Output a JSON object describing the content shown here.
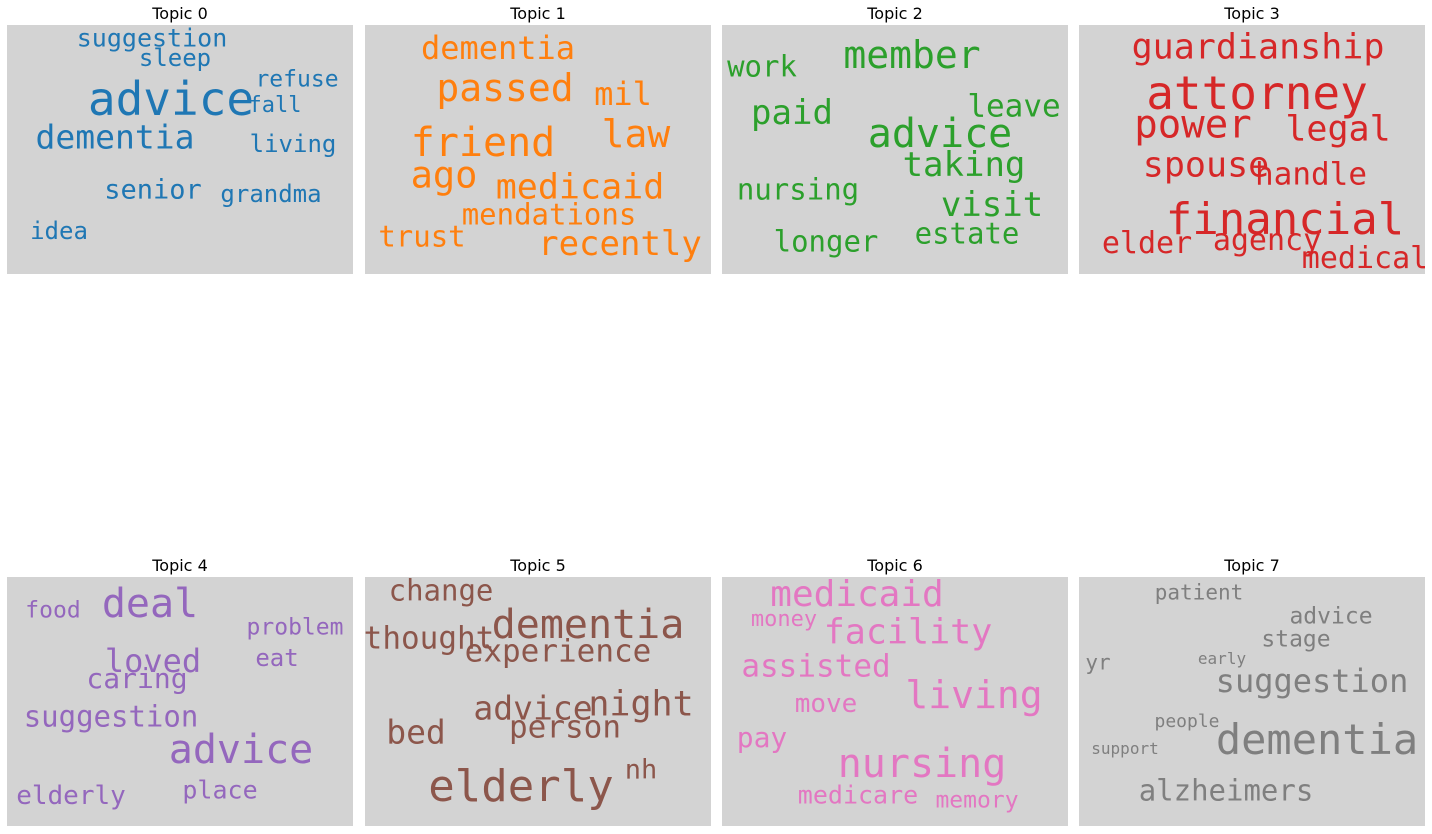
{
  "chart_data": [
    {
      "type": "wordcloud",
      "title": "Topic 0",
      "color": "#1f77b4",
      "words": [
        {
          "text": "advice",
          "size": 1.0
        },
        {
          "text": "dementia",
          "size": 0.72
        },
        {
          "text": "senior",
          "size": 0.58
        },
        {
          "text": "suggestion",
          "size": 0.55
        },
        {
          "text": "idea",
          "size": 0.52
        },
        {
          "text": "grandma",
          "size": 0.52
        },
        {
          "text": "sleep",
          "size": 0.52
        },
        {
          "text": "living",
          "size": 0.52
        },
        {
          "text": "refuse",
          "size": 0.5
        },
        {
          "text": "fall",
          "size": 0.48
        }
      ]
    },
    {
      "type": "wordcloud",
      "title": "Topic 1",
      "color": "#ff7f0e",
      "words": [
        {
          "text": "friend",
          "size": 1.0
        },
        {
          "text": "passed",
          "size": 0.95
        },
        {
          "text": "law",
          "size": 0.95
        },
        {
          "text": "ago",
          "size": 0.92
        },
        {
          "text": "medicaid",
          "size": 0.88
        },
        {
          "text": "recently",
          "size": 0.85
        },
        {
          "text": "mil",
          "size": 0.8
        },
        {
          "text": "dementia",
          "size": 0.8
        },
        {
          "text": "mendations",
          "size": 0.72
        },
        {
          "text": "trust",
          "size": 0.72
        }
      ]
    },
    {
      "type": "wordcloud",
      "title": "Topic 2",
      "color": "#2ca02c",
      "words": [
        {
          "text": "advice",
          "size": 1.0
        },
        {
          "text": "member",
          "size": 0.95
        },
        {
          "text": "taking",
          "size": 0.85
        },
        {
          "text": "visit",
          "size": 0.85
        },
        {
          "text": "paid",
          "size": 0.85
        },
        {
          "text": "leave",
          "size": 0.78
        },
        {
          "text": "nursing",
          "size": 0.73
        },
        {
          "text": "estate",
          "size": 0.73
        },
        {
          "text": "longer",
          "size": 0.73
        },
        {
          "text": "work",
          "size": 0.73
        }
      ]
    },
    {
      "type": "wordcloud",
      "title": "Topic 3",
      "color": "#d62728",
      "words": [
        {
          "text": "attorney",
          "size": 1.0
        },
        {
          "text": "financial",
          "size": 0.95
        },
        {
          "text": "power",
          "size": 0.85
        },
        {
          "text": "guardianship",
          "size": 0.75
        },
        {
          "text": "spouse",
          "size": 0.75
        },
        {
          "text": "legal",
          "size": 0.75
        },
        {
          "text": "handle",
          "size": 0.68
        },
        {
          "text": "elder",
          "size": 0.65
        },
        {
          "text": "agency",
          "size": 0.65
        },
        {
          "text": "medical",
          "size": 0.65
        }
      ]
    },
    {
      "type": "wordcloud",
      "title": "Topic 4",
      "color": "#9467bd",
      "words": [
        {
          "text": "deal",
          "size": 1.0
        },
        {
          "text": "advice",
          "size": 1.0
        },
        {
          "text": "loved",
          "size": 0.8
        },
        {
          "text": "suggestion",
          "size": 0.72
        },
        {
          "text": "caring",
          "size": 0.7
        },
        {
          "text": "elderly",
          "size": 0.65
        },
        {
          "text": "place",
          "size": 0.62
        },
        {
          "text": "eat",
          "size": 0.6
        },
        {
          "text": "problem",
          "size": 0.58
        },
        {
          "text": "food",
          "size": 0.58
        }
      ]
    },
    {
      "type": "wordcloud",
      "title": "Topic 5",
      "color": "#8c564b",
      "words": [
        {
          "text": "elderly",
          "size": 1.0
        },
        {
          "text": "dementia",
          "size": 0.9
        },
        {
          "text": "night",
          "size": 0.8
        },
        {
          "text": "advice",
          "size": 0.75
        },
        {
          "text": "bed",
          "size": 0.75
        },
        {
          "text": "person",
          "size": 0.7
        },
        {
          "text": "experience",
          "size": 0.7
        },
        {
          "text": "thought",
          "size": 0.7
        },
        {
          "text": "change",
          "size": 0.65
        },
        {
          "text": "nh",
          "size": 0.62
        }
      ]
    },
    {
      "type": "wordcloud",
      "title": "Topic 6",
      "color": "#e377c2",
      "words": [
        {
          "text": "nursing",
          "size": 1.0
        },
        {
          "text": "living",
          "size": 0.95
        },
        {
          "text": "medicaid",
          "size": 0.9
        },
        {
          "text": "facility",
          "size": 0.88
        },
        {
          "text": "assisted",
          "size": 0.78
        },
        {
          "text": "pay",
          "size": 0.7
        },
        {
          "text": "move",
          "size": 0.65
        },
        {
          "text": "medicare",
          "size": 0.62
        },
        {
          "text": "memory",
          "size": 0.58
        },
        {
          "text": "money",
          "size": 0.55
        }
      ]
    },
    {
      "type": "wordcloud",
      "title": "Topic 7",
      "color": "#7f7f7f",
      "words": [
        {
          "text": "dementia",
          "size": 1.0
        },
        {
          "text": "suggestion",
          "size": 0.75
        },
        {
          "text": "alzheimers",
          "size": 0.68
        },
        {
          "text": "stage",
          "size": 0.55
        },
        {
          "text": "advice",
          "size": 0.55
        },
        {
          "text": "patient",
          "size": 0.5
        },
        {
          "text": "yr",
          "size": 0.5
        },
        {
          "text": "people",
          "size": 0.42
        },
        {
          "text": "early",
          "size": 0.38
        },
        {
          "text": "support",
          "size": 0.38
        }
      ]
    }
  ]
}
